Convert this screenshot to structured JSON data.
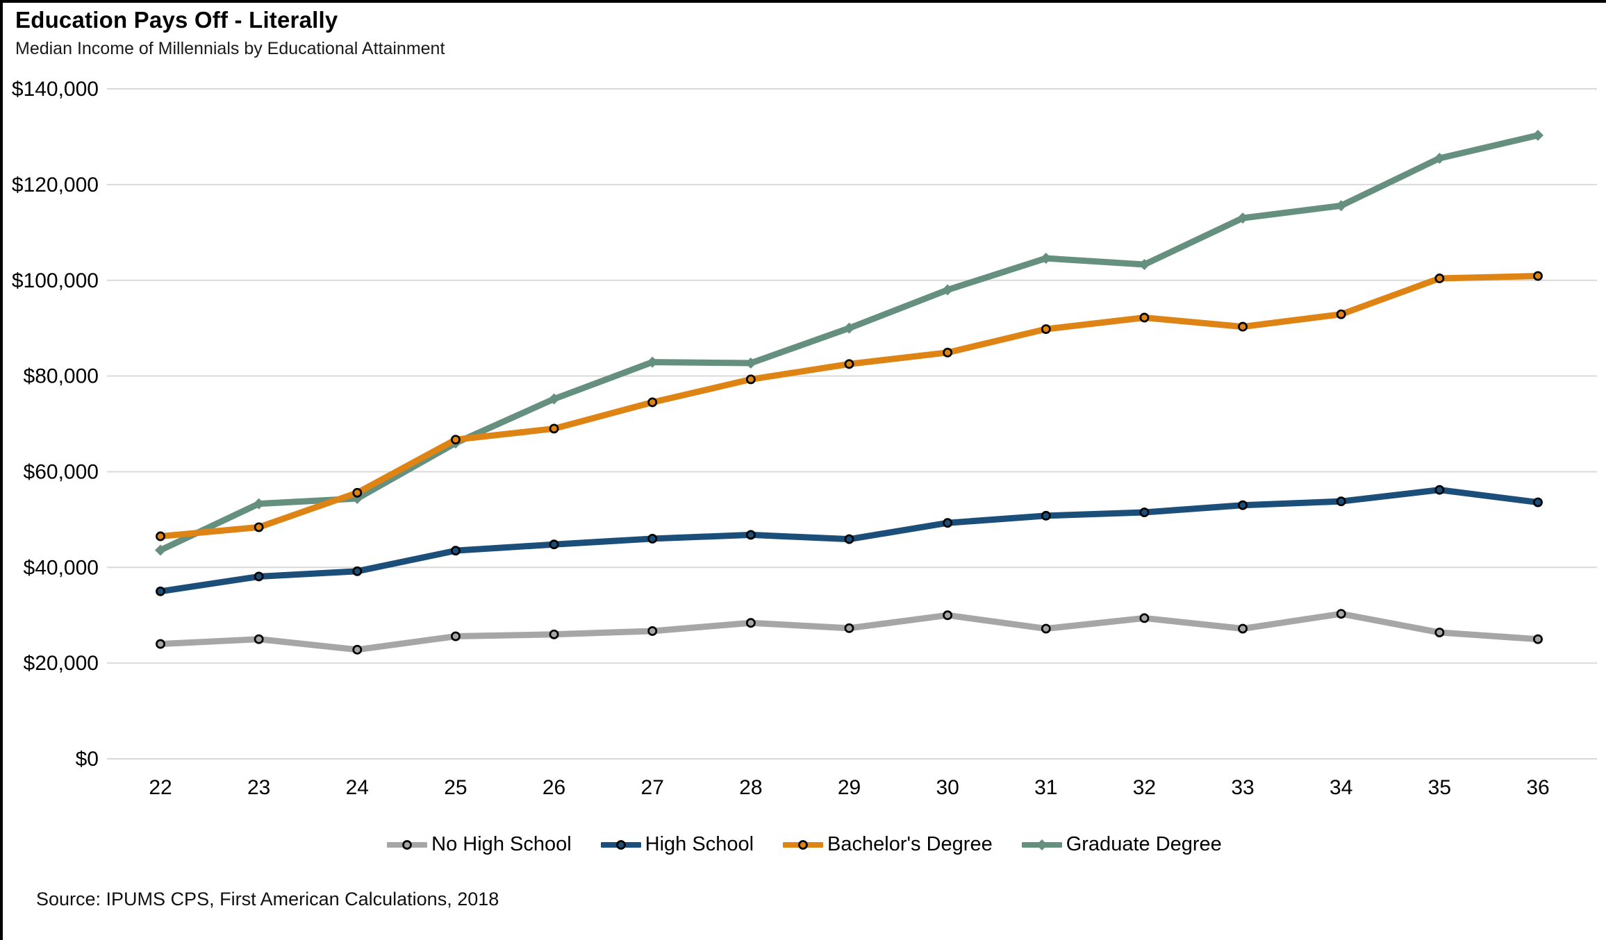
{
  "title": "Education Pays Off - Literally",
  "subtitle": "Median Income of Millennials by Educational Attainment",
  "source": "Source: IPUMS CPS, First American Calculations, 2018",
  "colors": {
    "no_high_school": "#A6A6A6",
    "high_school": "#1B4E79",
    "bachelors": "#DD8414",
    "graduate": "#65907F",
    "gridline": "#D9D9D9",
    "marker_ring": "#000000",
    "text": "#000000"
  },
  "chart_data": {
    "type": "line",
    "x": [
      22,
      23,
      24,
      25,
      26,
      27,
      28,
      29,
      30,
      31,
      32,
      33,
      34,
      35,
      36
    ],
    "xlabel": "",
    "ylabel": "",
    "ylim": [
      0,
      140000
    ],
    "ytick_step": 20000,
    "ytick_labels": [
      "$0",
      "$20,000",
      "$40,000",
      "$60,000",
      "$80,000",
      "$100,000",
      "$120,000",
      "$140,000"
    ],
    "grid": true,
    "legend_position": "bottom",
    "series": [
      {
        "name": "No High School",
        "color": "#A6A6A6",
        "marker": "circle",
        "values": [
          24000,
          25000,
          22800,
          25600,
          26000,
          26700,
          28400,
          27300,
          30000,
          27200,
          29400,
          27200,
          30300,
          26400,
          25000
        ]
      },
      {
        "name": "High School",
        "color": "#1B4E79",
        "marker": "circle",
        "values": [
          35000,
          38100,
          39200,
          43500,
          44800,
          46000,
          46800,
          45900,
          49300,
          50800,
          51500,
          53000,
          53800,
          56200,
          53600
        ]
      },
      {
        "name": "Bachelor's Degree",
        "color": "#DD8414",
        "marker": "circle",
        "values": [
          46500,
          48400,
          55600,
          66700,
          69000,
          74500,
          79300,
          82500,
          84900,
          89800,
          92200,
          90300,
          92900,
          100400,
          100900
        ]
      },
      {
        "name": "Graduate Degree",
        "color": "#65907F",
        "marker": "diamond",
        "values": [
          43600,
          53300,
          54400,
          66000,
          75200,
          82900,
          82700,
          90000,
          98000,
          104600,
          103300,
          113000,
          115600,
          125500,
          130300
        ]
      }
    ]
  }
}
